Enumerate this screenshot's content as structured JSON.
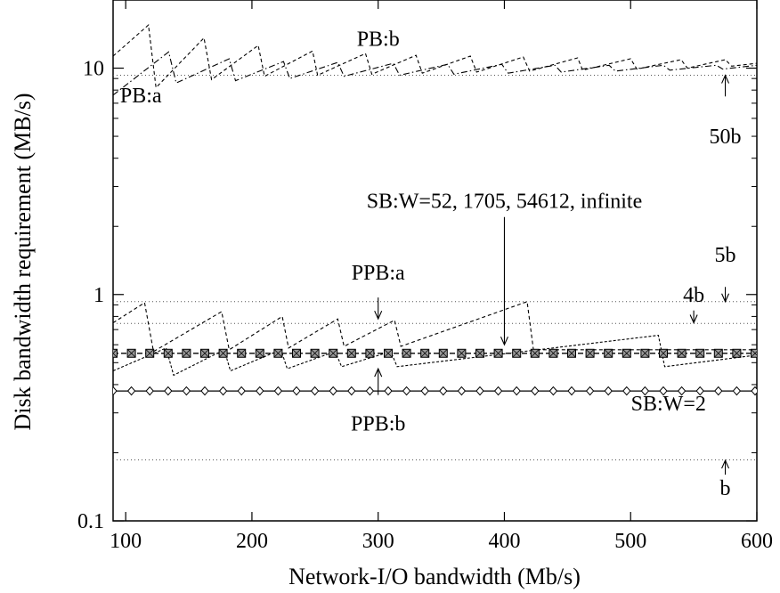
{
  "chart_data": {
    "type": "line",
    "xlabel": "Network-I/O bandwidth (Mb/s)",
    "ylabel": "Disk bandwidth requirement (MB/s)",
    "xlim": [
      90,
      600
    ],
    "ylim": [
      0.1,
      20
    ],
    "yscale": "log",
    "grid": false,
    "legend": "none",
    "x_ticks": [
      100,
      200,
      300,
      400,
      500,
      600
    ],
    "x_tick_labels": [
      "100",
      "200",
      "300",
      "400",
      "500",
      "600"
    ],
    "y_ticks": [
      0.1,
      1,
      10
    ],
    "y_tick_labels": [
      "0.1",
      "1",
      "10"
    ],
    "reference_lines": [
      {
        "label": "50b",
        "y": 9.3
      },
      {
        "label": "5b",
        "y": 0.93
      },
      {
        "label": "4b",
        "y": 0.745
      },
      {
        "label": "b",
        "y": 0.186
      }
    ],
    "series": [
      {
        "name": "PB:b",
        "x": [
          90,
          118,
          124,
          162,
          168,
          205,
          210,
          248,
          252,
          290,
          295,
          330,
          335,
          373,
          378,
          415,
          420,
          458,
          462,
          500,
          505,
          540,
          545,
          575,
          580,
          600
        ],
        "y": [
          11.3,
          15.5,
          8.2,
          13.6,
          8.9,
          12.6,
          9.2,
          11.9,
          9.3,
          11.6,
          9.4,
          11.4,
          9.5,
          11.3,
          9.6,
          11.2,
          9.7,
          11.1,
          9.8,
          11.0,
          9.9,
          10.9,
          10.0,
          10.9,
          10.2,
          10.5
        ]
      },
      {
        "name": "PB:a",
        "x": [
          90,
          134,
          140,
          182,
          187,
          225,
          230,
          268,
          273,
          312,
          317,
          355,
          360,
          398,
          403,
          440,
          445,
          483,
          488,
          526,
          531,
          568,
          573,
          600
        ],
        "y": [
          7.6,
          11.8,
          8.6,
          11.0,
          8.8,
          10.7,
          9.0,
          10.6,
          9.2,
          10.5,
          9.3,
          10.4,
          9.4,
          10.4,
          9.5,
          10.3,
          9.6,
          10.3,
          9.7,
          10.3,
          9.8,
          10.3,
          9.9,
          10.3
        ]
      },
      {
        "name": "PPB:a",
        "x": [
          90,
          115,
          122,
          176,
          182,
          224,
          229,
          268,
          273,
          313,
          318,
          418,
          423,
          600
        ],
        "y": [
          0.75,
          0.92,
          0.56,
          0.84,
          0.57,
          0.8,
          0.58,
          0.78,
          0.59,
          0.77,
          0.59,
          0.93,
          0.57,
          0.57
        ]
      },
      {
        "name": "PPB:b",
        "x": [
          90,
          132,
          138,
          178,
          183,
          223,
          228,
          266,
          271,
          310,
          315,
          522,
          527,
          600
        ],
        "y": [
          0.46,
          0.58,
          0.44,
          0.57,
          0.46,
          0.57,
          0.47,
          0.56,
          0.48,
          0.56,
          0.48,
          0.66,
          0.48,
          0.54
        ]
      },
      {
        "name": "SB:W=52, 1705, 54612, infinite",
        "x": [
          90,
          600
        ],
        "y": [
          0.55,
          0.55
        ]
      },
      {
        "name": "SB:W=2",
        "x": [
          90,
          600
        ],
        "y": [
          0.375,
          0.375
        ]
      }
    ],
    "annotations": [
      {
        "text": "PB:b",
        "x": 300,
        "y": 13.5
      },
      {
        "text": "PB:a",
        "x": 112,
        "y": 7.6
      },
      {
        "text": "50b",
        "x": 575,
        "y": 5.0
      },
      {
        "text": "SB:W=52, 1705, 54612, infinite",
        "x": 400,
        "y": 2.6
      },
      {
        "text": "PPB:a",
        "x": 300,
        "y": 1.25
      },
      {
        "text": "4b",
        "x": 550,
        "y": 1.0
      },
      {
        "text": "5b",
        "x": 575,
        "y": 1.5
      },
      {
        "text": "PPB:b",
        "x": 300,
        "y": 0.27
      },
      {
        "text": "SB:W=2",
        "x": 530,
        "y": 0.33
      },
      {
        "text": "b",
        "x": 575,
        "y": 0.14
      }
    ],
    "arrows": [
      {
        "x": 575,
        "y_from": 7.5,
        "y_to": 9.3
      },
      {
        "x": 400,
        "y_from": 2.2,
        "y_to": 0.6
      },
      {
        "x": 300,
        "y_from": 0.97,
        "y_to": 0.78
      },
      {
        "x": 550,
        "y_from": 0.85,
        "y_to": 0.75
      },
      {
        "x": 575,
        "y_from": 1.08,
        "y_to": 0.93
      },
      {
        "x": 300,
        "y_from": 0.36,
        "y_to": 0.47
      },
      {
        "x": 575,
        "y_from": 0.16,
        "y_to": 0.185
      }
    ]
  }
}
